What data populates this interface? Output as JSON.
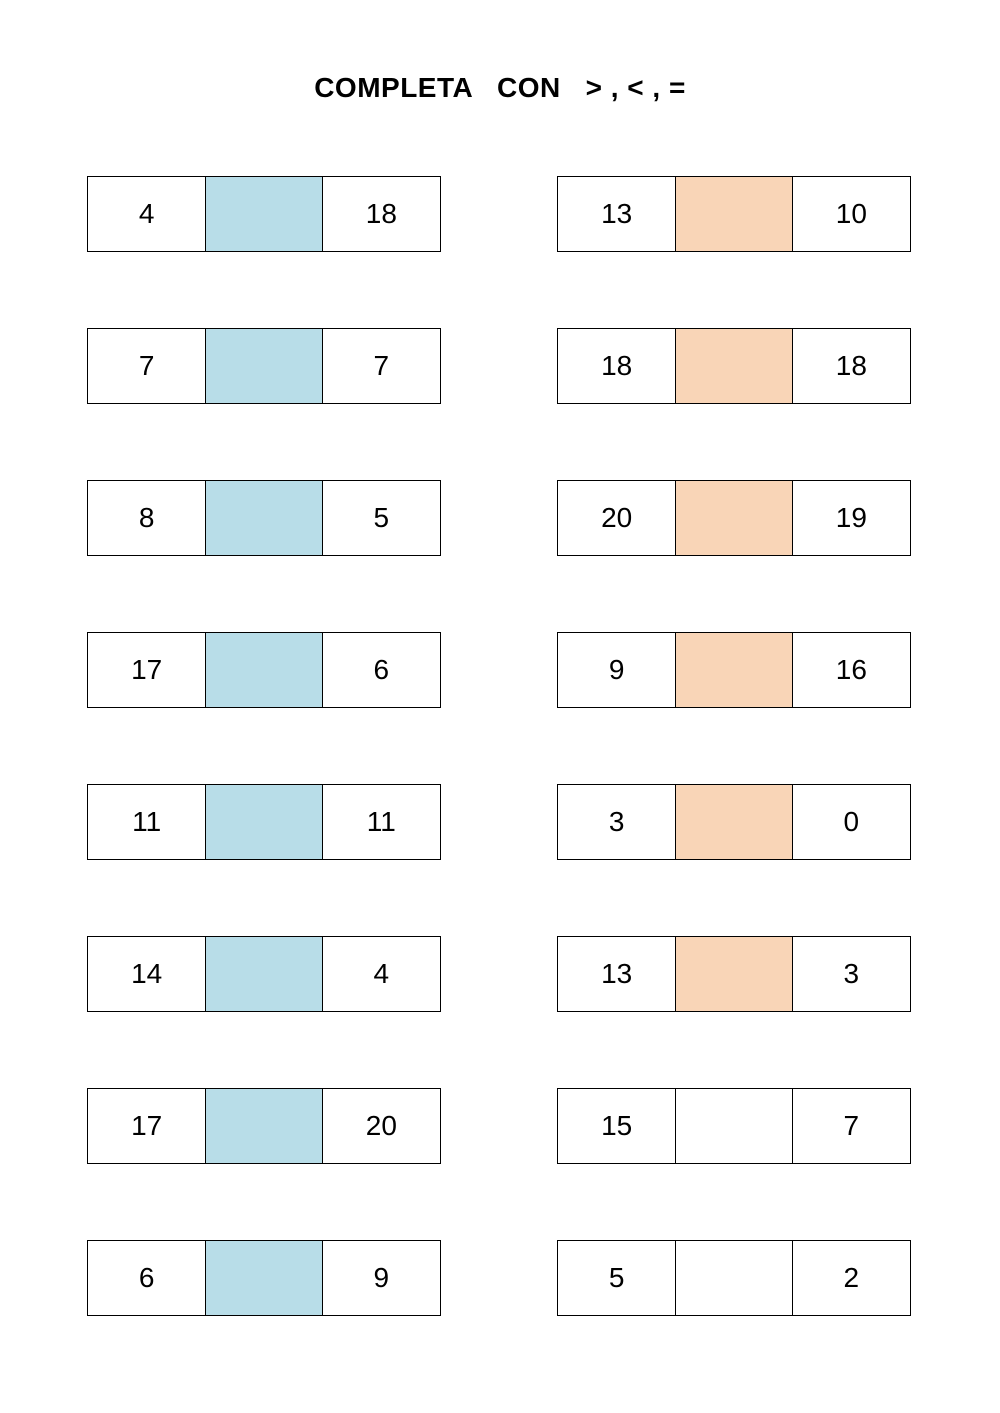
{
  "title": "COMPLETA   CON   > , < , =",
  "colors": {
    "blue": "#b8dde8",
    "orange": "#f9d5b7",
    "white": "#ffffff"
  },
  "columns": [
    {
      "rows": [
        {
          "left": "4",
          "right": "18",
          "fill": "blue"
        },
        {
          "left": "7",
          "right": "7",
          "fill": "blue"
        },
        {
          "left": "8",
          "right": "5",
          "fill": "blue"
        },
        {
          "left": "17",
          "right": "6",
          "fill": "blue"
        },
        {
          "left": "11",
          "right": "11",
          "fill": "blue"
        },
        {
          "left": "14",
          "right": "4",
          "fill": "blue"
        },
        {
          "left": "17",
          "right": "20",
          "fill": "blue"
        },
        {
          "left": "6",
          "right": "9",
          "fill": "blue"
        }
      ]
    },
    {
      "rows": [
        {
          "left": "13",
          "right": "10",
          "fill": "orange"
        },
        {
          "left": "18",
          "right": "18",
          "fill": "orange"
        },
        {
          "left": "20",
          "right": "19",
          "fill": "orange"
        },
        {
          "left": "9",
          "right": "16",
          "fill": "orange"
        },
        {
          "left": "3",
          "right": "0",
          "fill": "orange"
        },
        {
          "left": "13",
          "right": "3",
          "fill": "orange"
        },
        {
          "left": "15",
          "right": "7",
          "fill": "white"
        },
        {
          "left": "5",
          "right": "2",
          "fill": "white"
        }
      ]
    }
  ]
}
